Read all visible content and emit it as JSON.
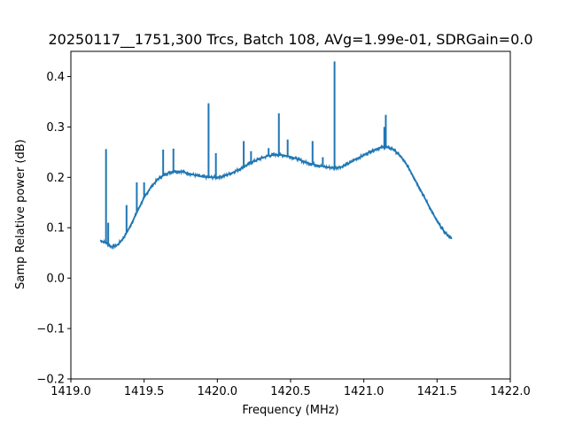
{
  "chart_data": {
    "type": "line",
    "title": "20250117__1751,300 Trcs, Batch 108, AVg=1.99e-01, SDRGain=0.0",
    "xlabel": "Frequency (MHz)",
    "ylabel": "Samp Relative power (dB)",
    "xlim": [
      1419.0,
      1422.0
    ],
    "ylim": [
      -0.2,
      0.45
    ],
    "xticks": [
      "1419.0",
      "1419.5",
      "1420.0",
      "1420.5",
      "1421.0",
      "1421.5",
      "1422.0"
    ],
    "yticks": [
      "−0.2",
      "−0.1",
      "0.0",
      "0.1",
      "0.2",
      "0.3",
      "0.4"
    ],
    "grid": false,
    "series": [
      {
        "color": "#1f77b4",
        "baseline": {
          "x": [
            1419.2,
            1419.24,
            1419.28,
            1419.32,
            1419.36,
            1419.4,
            1419.45,
            1419.5,
            1419.55,
            1419.6,
            1419.65,
            1419.7,
            1419.75,
            1419.8,
            1419.85,
            1419.9,
            1419.95,
            1420.0,
            1420.05,
            1420.1,
            1420.15,
            1420.2,
            1420.25,
            1420.3,
            1420.35,
            1420.4,
            1420.45,
            1420.5,
            1420.55,
            1420.6,
            1420.65,
            1420.7,
            1420.75,
            1420.8,
            1420.85,
            1420.9,
            1420.95,
            1421.0,
            1421.05,
            1421.1,
            1421.15,
            1421.2,
            1421.25,
            1421.3,
            1421.35,
            1421.4,
            1421.45,
            1421.5,
            1421.55,
            1421.6
          ],
          "y": [
            0.075,
            0.07,
            0.062,
            0.066,
            0.08,
            0.1,
            0.13,
            0.16,
            0.182,
            0.198,
            0.207,
            0.212,
            0.212,
            0.208,
            0.204,
            0.201,
            0.2,
            0.2,
            0.203,
            0.209,
            0.216,
            0.224,
            0.232,
            0.238,
            0.243,
            0.245,
            0.244,
            0.241,
            0.236,
            0.23,
            0.226,
            0.223,
            0.22,
            0.219,
            0.221,
            0.228,
            0.237,
            0.244,
            0.252,
            0.258,
            0.26,
            0.256,
            0.242,
            0.222,
            0.195,
            0.168,
            0.14,
            0.113,
            0.092,
            0.078
          ]
        },
        "spikes": {
          "x": [
            1419.24,
            1419.255,
            1419.38,
            1419.45,
            1419.5,
            1419.63,
            1419.7,
            1419.94,
            1419.99,
            1420.18,
            1420.23,
            1420.35,
            1420.42,
            1420.48,
            1420.65,
            1420.72,
            1420.8,
            1421.14,
            1421.15
          ],
          "y": [
            0.256,
            0.11,
            0.145,
            0.19,
            0.19,
            0.255,
            0.257,
            0.347,
            0.248,
            0.272,
            0.252,
            0.258,
            0.327,
            0.275,
            0.272,
            0.24,
            0.43,
            0.3,
            0.324
          ]
        }
      }
    ]
  }
}
